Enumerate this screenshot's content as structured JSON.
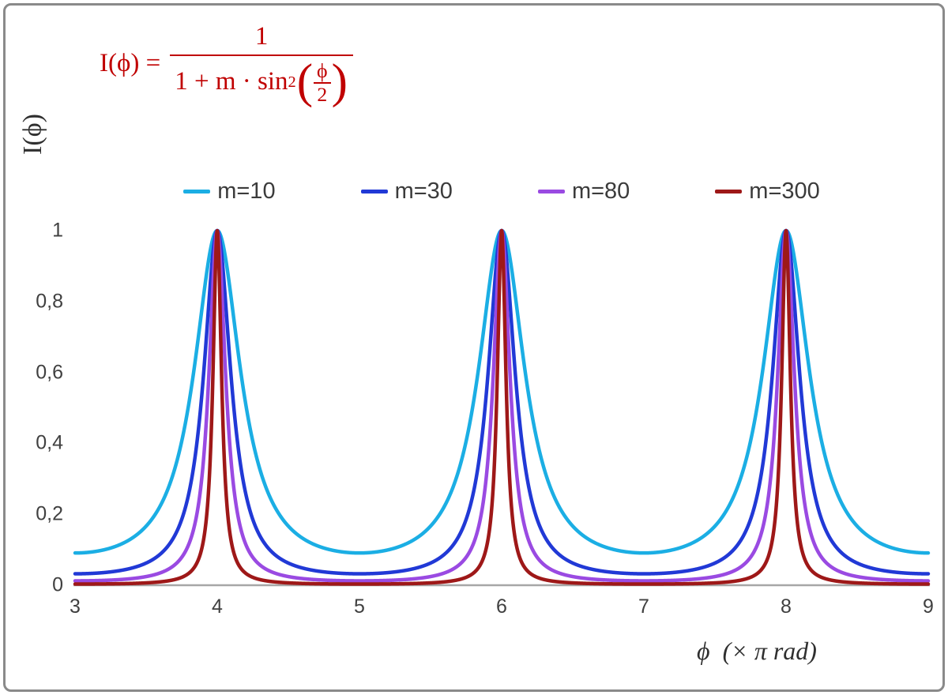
{
  "chart_data": {
    "type": "line",
    "title": "",
    "function": "I(phi) = 1 / (1 + m * sin^2(phi/2)), phi plotted in units of pi rad",
    "formula": {
      "lhs": "I(ϕ) =",
      "numerator": "1",
      "den_text": "1 + m · sin",
      "den_sup": "2",
      "inner_num": "ϕ",
      "inner_den": "2",
      "paren_open": "(",
      "paren_close": ")",
      "color": "#C00000"
    },
    "x": {
      "label": "ϕ  (× π rad)",
      "min": 3,
      "max": 9,
      "ticks": [
        3,
        4,
        5,
        6,
        7,
        8,
        9
      ]
    },
    "y": {
      "label": "I(ϕ)",
      "min": 0,
      "max": 1,
      "tick_values": [
        0,
        0.2,
        0.4,
        0.6,
        0.8,
        1
      ],
      "tick_labels": [
        "0",
        "0,2",
        "0,4",
        "0,6",
        "0,8",
        "1"
      ]
    },
    "series": [
      {
        "name": "m=10",
        "m": 10,
        "color": "#1BAEE4"
      },
      {
        "name": "m=30",
        "m": 30,
        "color": "#2139D6"
      },
      {
        "name": "m=80",
        "m": 80,
        "color": "#9A4AE2"
      },
      {
        "name": "m=300",
        "m": 300,
        "color": "#9E1818"
      }
    ],
    "peaks_x": [
      4,
      6,
      8
    ],
    "peak_value": 1,
    "legend_position": "top-center",
    "grid": false
  },
  "frame": {
    "border_color": "#8a8a8a",
    "background": "#ffffff",
    "axis_color": "#a6a6a6",
    "text_color": "#404040"
  }
}
